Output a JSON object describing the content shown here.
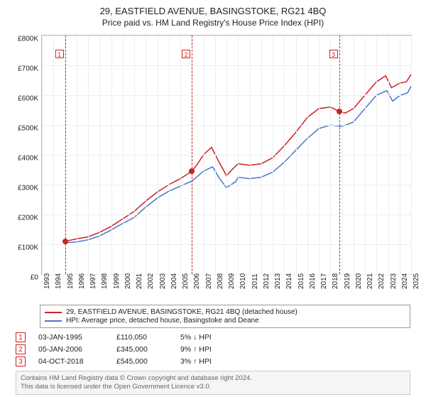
{
  "title": "29, EASTFIELD AVENUE, BASINGSTOKE, RG21 4BQ",
  "subtitle": "Price paid vs. HM Land Registry's House Price Index (HPI)",
  "chart": {
    "type": "line",
    "background_color": "#ffffff",
    "grid_color": "#eeeeee",
    "plot_border_color": "#bbbbbb",
    "ylim": [
      0,
      800000
    ],
    "ytick_step": 100000,
    "yticks": [
      "£0",
      "£100K",
      "£200K",
      "£300K",
      "£400K",
      "£500K",
      "£600K",
      "£700K",
      "£800K"
    ],
    "xlim": [
      1993,
      2025
    ],
    "xticks": [
      1993,
      1994,
      1995,
      1996,
      1997,
      1998,
      1999,
      2000,
      2001,
      2002,
      2003,
      2004,
      2005,
      2006,
      2007,
      2008,
      2009,
      2010,
      2011,
      2012,
      2013,
      2014,
      2015,
      2016,
      2017,
      2018,
      2019,
      2020,
      2021,
      2022,
      2023,
      2024,
      2025
    ],
    "marker_color": "#cc2222",
    "marker_line_dash": "3,3",
    "label_fontsize": 10
  },
  "series": {
    "red": {
      "label": "29, EASTFIELD AVENUE, BASINGSTOKE, RG21 4BQ (detached house)",
      "color": "#cc2222",
      "line_width": 1.5,
      "points": [
        [
          1995.0,
          110050
        ],
        [
          1996,
          118000
        ],
        [
          1997,
          125000
        ],
        [
          1998,
          140000
        ],
        [
          1999,
          160000
        ],
        [
          2000,
          185000
        ],
        [
          2001,
          210000
        ],
        [
          2002,
          245000
        ],
        [
          2003,
          275000
        ],
        [
          2004,
          300000
        ],
        [
          2005,
          320000
        ],
        [
          2006.0,
          345000
        ],
        [
          2006.5,
          370000
        ],
        [
          2007,
          400000
        ],
        [
          2007.7,
          425000
        ],
        [
          2008.3,
          380000
        ],
        [
          2009,
          330000
        ],
        [
          2009.6,
          355000
        ],
        [
          2010,
          370000
        ],
        [
          2011,
          365000
        ],
        [
          2012,
          370000
        ],
        [
          2013,
          390000
        ],
        [
          2014,
          430000
        ],
        [
          2015,
          475000
        ],
        [
          2016,
          525000
        ],
        [
          2017,
          555000
        ],
        [
          2018,
          560000
        ],
        [
          2018.8,
          545000
        ],
        [
          2019.3,
          540000
        ],
        [
          2020,
          555000
        ],
        [
          2021,
          600000
        ],
        [
          2022,
          645000
        ],
        [
          2022.8,
          665000
        ],
        [
          2023.3,
          625000
        ],
        [
          2024,
          640000
        ],
        [
          2024.6,
          645000
        ],
        [
          2025,
          670000
        ]
      ]
    },
    "blue": {
      "label": "HPI: Average price, detached house, Basingstoke and Deane",
      "color": "#4a74c9",
      "line_width": 1.5,
      "points": [
        [
          1995.0,
          105000
        ],
        [
          1996,
          108000
        ],
        [
          1997,
          115000
        ],
        [
          1998,
          128000
        ],
        [
          1999,
          148000
        ],
        [
          2000,
          170000
        ],
        [
          2001,
          190000
        ],
        [
          2002,
          225000
        ],
        [
          2003,
          255000
        ],
        [
          2004,
          278000
        ],
        [
          2005,
          295000
        ],
        [
          2006,
          312000
        ],
        [
          2007,
          345000
        ],
        [
          2007.8,
          360000
        ],
        [
          2008.4,
          320000
        ],
        [
          2009,
          290000
        ],
        [
          2009.8,
          310000
        ],
        [
          2010,
          325000
        ],
        [
          2011,
          320000
        ],
        [
          2012,
          325000
        ],
        [
          2013,
          342000
        ],
        [
          2014,
          375000
        ],
        [
          2015,
          415000
        ],
        [
          2016,
          455000
        ],
        [
          2017,
          488000
        ],
        [
          2018,
          500000
        ],
        [
          2019,
          495000
        ],
        [
          2020,
          510000
        ],
        [
          2021,
          555000
        ],
        [
          2022,
          600000
        ],
        [
          2022.9,
          615000
        ],
        [
          2023.4,
          580000
        ],
        [
          2024,
          598000
        ],
        [
          2024.7,
          608000
        ],
        [
          2025,
          630000
        ]
      ]
    }
  },
  "markers": [
    {
      "num": "1",
      "year": 1995.0,
      "price": 110050,
      "label_top": 20
    },
    {
      "num": "2",
      "year": 2006.0,
      "price": 345000,
      "label_top": 20
    },
    {
      "num": "3",
      "year": 2018.76,
      "price": 545000,
      "label_top": 20
    }
  ],
  "legend_border_color": "#999999",
  "events": [
    {
      "num": "1",
      "date": "03-JAN-1995",
      "price": "£110,050",
      "delta": "5% ↓ HPI"
    },
    {
      "num": "2",
      "date": "05-JAN-2006",
      "price": "£345,000",
      "delta": "9% ↑ HPI"
    },
    {
      "num": "3",
      "date": "04-OCT-2018",
      "price": "£545,000",
      "delta": "3% ↑ HPI"
    }
  ],
  "footer_line1": "Contains HM Land Registry data © Crown copyright and database right 2024.",
  "footer_line2": "This data is licensed under the Open Government Licence v3.0."
}
